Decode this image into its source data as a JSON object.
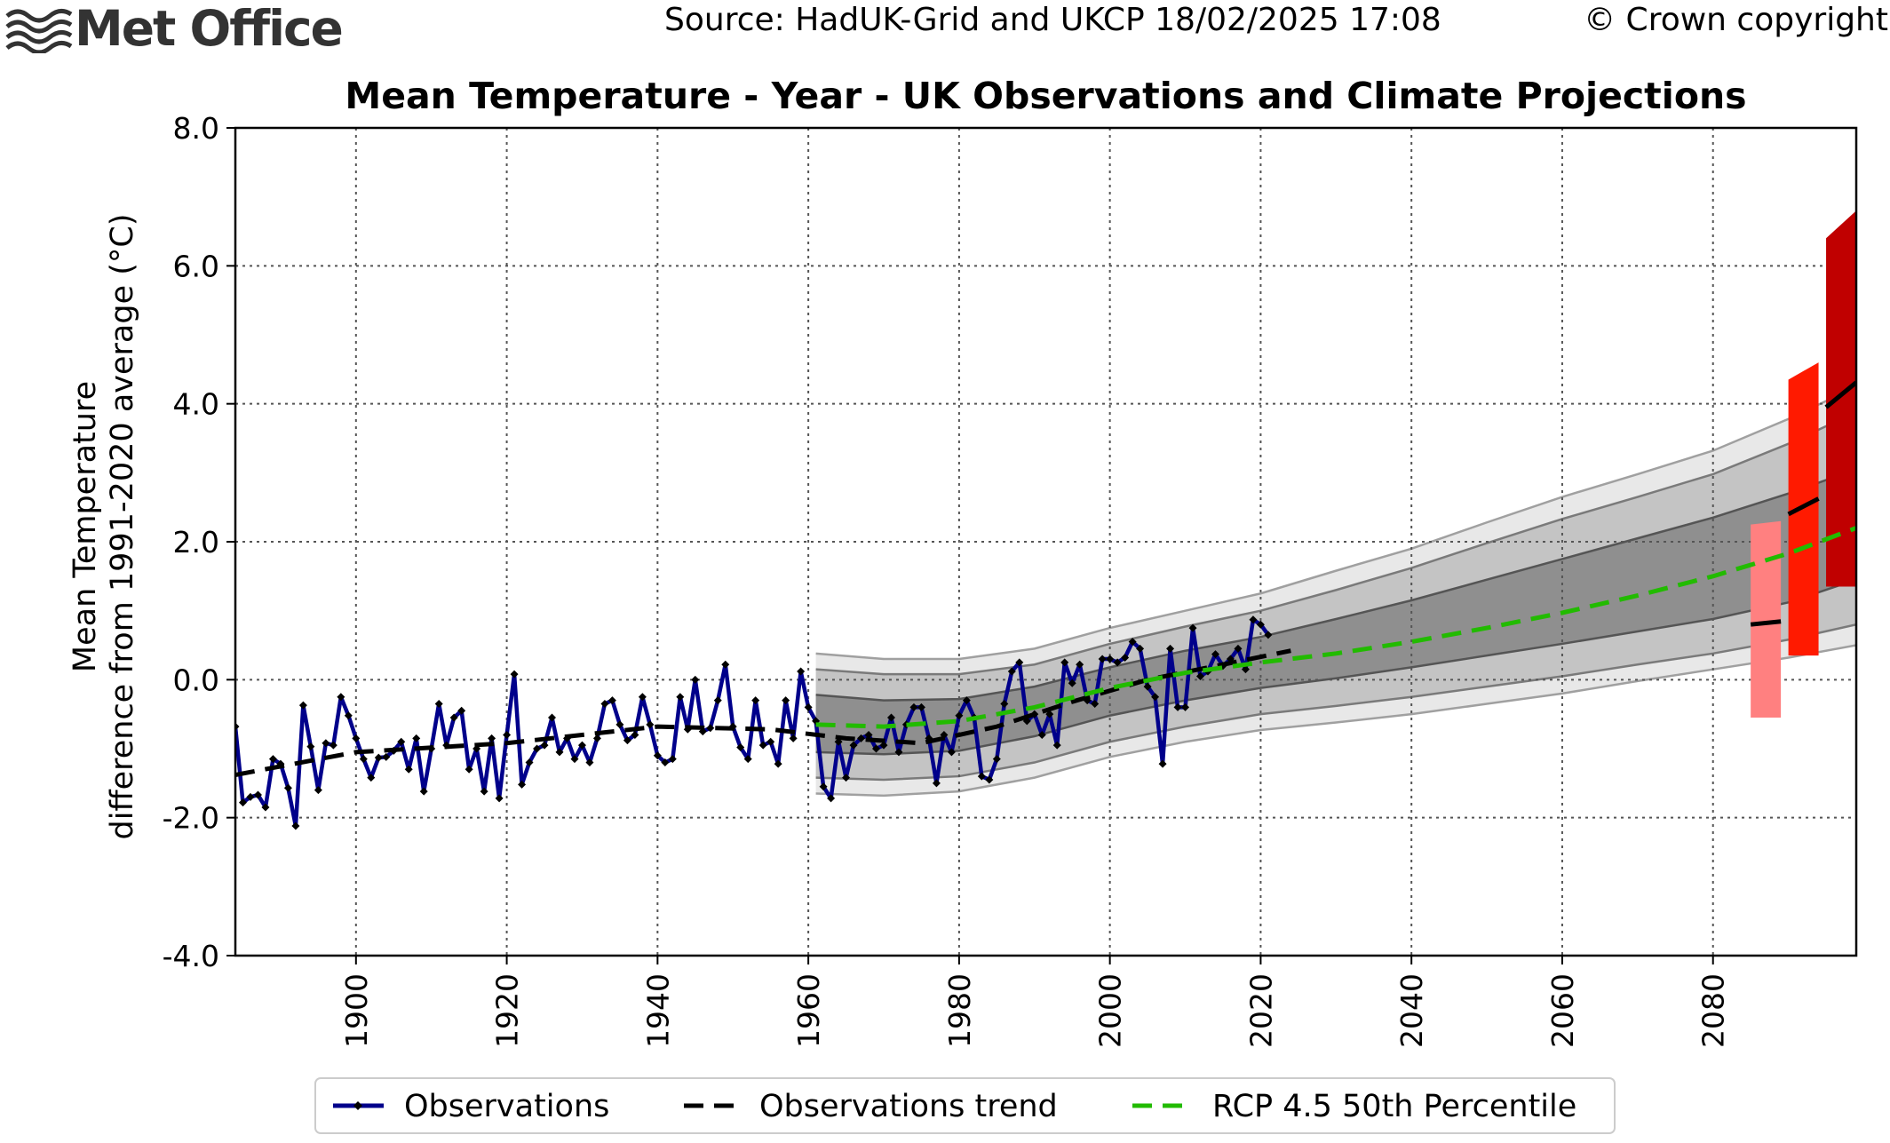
{
  "header": {
    "logo_text": "Met Office",
    "source": "Source: HadUK-Grid and UKCP 18/02/2025 17:08",
    "copyright": "© Crown copyright"
  },
  "colors": {
    "observations": "#00008b",
    "trend": "#000000",
    "rcp_median": "#22bb00",
    "band_outer": "#e8e8e8",
    "band_mid": "#c4c4c4",
    "band_inner": "#8f8f8f",
    "rcp26_bar": "#ff8080",
    "rcp45_bar": "#ff1a00",
    "rcp85_bar": "#c00000"
  },
  "chart_data": {
    "type": "line",
    "title": "Mean Temperature - Year - UK Observations and Climate Projections",
    "ylabel_line1": "Mean Temperature",
    "ylabel_line2": "difference from 1991-2020 average (°C)",
    "xlabel": "",
    "xlim": [
      1884,
      2099
    ],
    "ylim": [
      -4.0,
      8.0
    ],
    "x_ticks": [
      1900,
      1920,
      1940,
      1960,
      1980,
      2000,
      2020,
      2040,
      2060,
      2080
    ],
    "y_ticks": [
      -4.0,
      -2.0,
      0.0,
      2.0,
      4.0,
      6.0,
      8.0
    ],
    "y_tick_labels": [
      "-4.0",
      "-2.0",
      "0.0",
      "2.0",
      "4.0",
      "6.0",
      "8.0"
    ],
    "grid": true,
    "legend_position": "bottom-center",
    "legend": [
      "Observations",
      "Observations trend",
      "RCP 4.5 50th Percentile"
    ],
    "series": [
      {
        "name": "Observations",
        "style": "line-with-diamond-markers",
        "x_start": 1884,
        "values": [
          -0.68,
          -1.78,
          -1.7,
          -1.67,
          -1.85,
          -1.15,
          -1.22,
          -1.57,
          -2.12,
          -0.37,
          -0.97,
          -1.6,
          -0.92,
          -0.95,
          -0.25,
          -0.52,
          -0.85,
          -1.15,
          -1.42,
          -1.13,
          -1.12,
          -1.03,
          -0.9,
          -1.3,
          -0.85,
          -1.62,
          -1.0,
          -0.35,
          -0.95,
          -0.55,
          -0.45,
          -1.3,
          -1.0,
          -1.62,
          -0.85,
          -1.72,
          -0.8,
          0.08,
          -1.52,
          -1.2,
          -1.0,
          -0.95,
          -0.55,
          -1.05,
          -0.85,
          -1.15,
          -0.95,
          -1.2,
          -0.85,
          -0.35,
          -0.3,
          -0.65,
          -0.88,
          -0.8,
          -0.25,
          -0.65,
          -1.1,
          -1.2,
          -1.15,
          -0.25,
          -0.72,
          0.0,
          -0.75,
          -0.7,
          -0.3,
          0.22,
          -0.68,
          -0.98,
          -1.15,
          -0.3,
          -0.95,
          -0.9,
          -1.22,
          -0.3,
          -0.85,
          0.12,
          -0.4,
          -0.6,
          -1.55,
          -1.72,
          -0.9,
          -1.42,
          -0.95,
          -0.85,
          -0.8,
          -1.0,
          -0.95,
          -0.55,
          -1.05,
          -0.65,
          -0.4,
          -0.4,
          -0.85,
          -1.5,
          -0.8,
          -1.05,
          -0.52,
          -0.3,
          -0.55,
          -1.4,
          -1.45,
          -1.15,
          -0.35,
          0.12,
          0.25,
          -0.6,
          -0.5,
          -0.8,
          -0.5,
          -0.95,
          0.25,
          -0.05,
          0.22,
          -0.3,
          -0.35,
          0.3,
          0.3,
          0.25,
          0.32,
          0.55,
          0.45,
          -0.1,
          -0.25,
          -1.22,
          0.45,
          -0.4,
          -0.4,
          0.75,
          0.05,
          0.12,
          0.37,
          0.2,
          0.3,
          0.45,
          0.15,
          0.87,
          0.8,
          0.65
        ]
      },
      {
        "name": "Observations trend",
        "style": "dashed",
        "x": [
          1884,
          1900,
          1920,
          1940,
          1955,
          1965,
          1975,
          1985,
          1995,
          2005,
          2015,
          2024
        ],
        "values": [
          -1.38,
          -1.05,
          -0.92,
          -0.68,
          -0.72,
          -0.85,
          -0.92,
          -0.68,
          -0.32,
          0.0,
          0.22,
          0.42
        ]
      },
      {
        "name": "RCP 4.5 50th Percentile",
        "style": "dashed",
        "x": [
          1961,
          1970,
          1980,
          1990,
          2000,
          2010,
          2020,
          2030,
          2040,
          2050,
          2060,
          2070,
          2080,
          2090,
          2099
        ],
        "values": [
          -0.65,
          -0.68,
          -0.6,
          -0.4,
          -0.12,
          0.1,
          0.25,
          0.38,
          0.55,
          0.75,
          0.97,
          1.22,
          1.5,
          1.83,
          2.2
        ]
      }
    ],
    "projection_bands": {
      "x": [
        1961,
        1970,
        1980,
        1990,
        2000,
        2010,
        2020,
        2030,
        2040,
        2050,
        2060,
        2070,
        2080,
        2090,
        2099
      ],
      "p95_outer": [
        0.38,
        0.3,
        0.3,
        0.45,
        0.75,
        1.0,
        1.25,
        1.58,
        1.9,
        2.28,
        2.65,
        2.98,
        3.32,
        3.78,
        4.25
      ],
      "p90_mid": [
        0.15,
        0.08,
        0.08,
        0.22,
        0.52,
        0.77,
        1.0,
        1.3,
        1.62,
        1.98,
        2.33,
        2.65,
        2.98,
        3.42,
        3.88
      ],
      "p75_inner": [
        -0.22,
        -0.3,
        -0.28,
        -0.1,
        0.18,
        0.42,
        0.62,
        0.88,
        1.15,
        1.45,
        1.75,
        2.05,
        2.35,
        2.7,
        3.05
      ],
      "p25_inner": [
        -1.05,
        -1.08,
        -1.03,
        -0.82,
        -0.52,
        -0.3,
        -0.12,
        0.02,
        0.18,
        0.35,
        0.52,
        0.7,
        0.88,
        1.12,
        1.45
      ],
      "p10_mid": [
        -1.42,
        -1.45,
        -1.4,
        -1.2,
        -0.9,
        -0.68,
        -0.5,
        -0.38,
        -0.25,
        -0.1,
        0.05,
        0.22,
        0.38,
        0.58,
        0.8
      ],
      "p5_outer": [
        -1.65,
        -1.68,
        -1.62,
        -1.42,
        -1.12,
        -0.9,
        -0.73,
        -0.62,
        -0.5,
        -0.35,
        -0.2,
        -0.02,
        0.15,
        0.32,
        0.5
      ]
    },
    "projection_bars": [
      {
        "scenario_color": "rcp26_bar",
        "x0": 2085,
        "x1": 2089,
        "low": -0.55,
        "high": 2.25,
        "high_end": 2.3,
        "median": 0.8
      },
      {
        "scenario_color": "rcp45_bar",
        "x0": 2090,
        "x1": 2094,
        "low": 0.35,
        "high": 4.35,
        "high_end": 4.6,
        "median": 2.4
      },
      {
        "scenario_color": "rcp85_bar",
        "x0": 2095,
        "x1": 2099,
        "low": 1.35,
        "high": 6.4,
        "high_end": 6.8,
        "median": 3.95
      }
    ]
  }
}
